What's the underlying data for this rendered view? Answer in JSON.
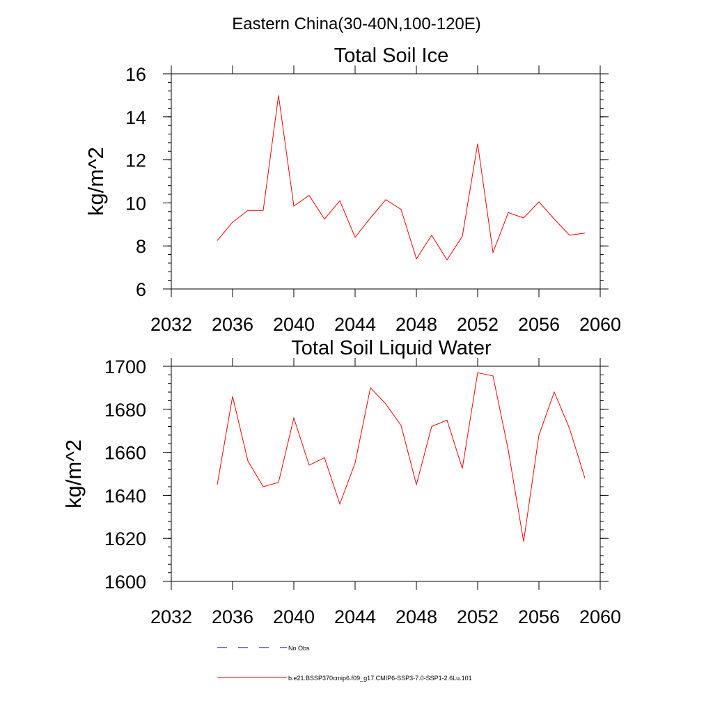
{
  "figure": {
    "title": "Eastern China(30-40N,100-120E)"
  },
  "legend": {
    "entries": [
      {
        "label": "No Obs",
        "color": "#000080",
        "style": "dashed"
      },
      {
        "label": "b.e21.BSSP370cmip6.f09_g17.CMIP6-SSP3-7.0-SSP1-2.6Lu.101",
        "color": "#ff0000",
        "style": "solid"
      }
    ]
  },
  "chart_data": [
    {
      "type": "line",
      "title": "Total Soil Ice",
      "xlabel": "",
      "ylabel": "kg/m^2",
      "xlim": [
        2032,
        2060
      ],
      "ylim": [
        6,
        16
      ],
      "xticks": [
        2032,
        2036,
        2040,
        2044,
        2048,
        2052,
        2056,
        2060
      ],
      "yticks": [
        6,
        8,
        10,
        12,
        14,
        16
      ],
      "grid": false,
      "series": [
        {
          "name": "b.e21.BSSP370cmip6.f09_g17.CMIP6-SSP3-7.0-SSP1-2.6Lu.101",
          "color": "#ff0000",
          "x": [
            2035,
            2036,
            2037,
            2038,
            2039,
            2040,
            2041,
            2042,
            2043,
            2044,
            2045,
            2046,
            2047,
            2048,
            2049,
            2050,
            2051,
            2052,
            2053,
            2054,
            2055,
            2056,
            2057,
            2058,
            2059
          ],
          "y": [
            8.25,
            9.1,
            9.65,
            9.65,
            15.0,
            9.85,
            10.35,
            9.25,
            10.1,
            8.4,
            9.3,
            10.15,
            9.7,
            7.4,
            8.5,
            7.35,
            8.45,
            12.75,
            7.7,
            9.55,
            9.3,
            10.05,
            9.25,
            8.5,
            8.6
          ]
        }
      ]
    },
    {
      "type": "line",
      "title": "Total Soil Liquid Water",
      "xlabel": "",
      "ylabel": "kg/m^2",
      "xlim": [
        2032,
        2060
      ],
      "ylim": [
        1600,
        1700
      ],
      "xticks": [
        2032,
        2036,
        2040,
        2044,
        2048,
        2052,
        2056,
        2060
      ],
      "yticks": [
        1600,
        1620,
        1640,
        1660,
        1680,
        1700
      ],
      "grid": false,
      "series": [
        {
          "name": "b.e21.BSSP370cmip6.f09_g17.CMIP6-SSP3-7.0-SSP1-2.6Lu.101",
          "color": "#ff0000",
          "x": [
            2035,
            2036,
            2037,
            2038,
            2039,
            2040,
            2041,
            2042,
            2043,
            2044,
            2045,
            2046,
            2047,
            2048,
            2049,
            2050,
            2051,
            2052,
            2053,
            2054,
            2055,
            2056,
            2057,
            2058,
            2059
          ],
          "y": [
            1645,
            1686,
            1656,
            1644,
            1646,
            1676,
            1654,
            1657.5,
            1636,
            1655,
            1690,
            1682.5,
            1672.5,
            1645,
            1672,
            1675,
            1652.5,
            1697,
            1695.5,
            1661,
            1618.5,
            1668,
            1688,
            1671,
            1648
          ]
        }
      ]
    }
  ]
}
